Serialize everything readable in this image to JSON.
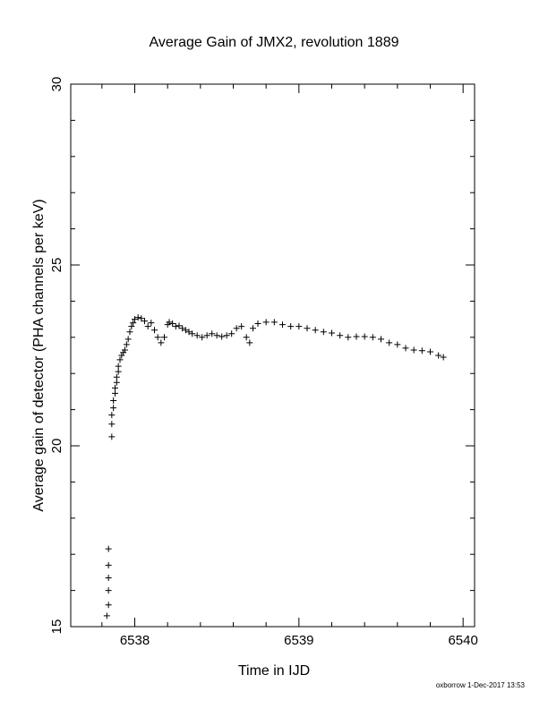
{
  "chart_data": {
    "type": "scatter",
    "title": "Average Gain of JMX2, revolution 1889",
    "xlabel": "Time in IJD",
    "ylabel": "Average gain of detector (PHA channels per keV)",
    "xlim": [
      6537.61,
      6540.07
    ],
    "ylim": [
      15,
      30
    ],
    "xticks": [
      6538,
      6539,
      6540
    ],
    "xtick_labels": [
      "6538",
      "6539",
      "6540"
    ],
    "yticks": [
      15,
      20,
      25,
      30
    ],
    "ytick_labels": [
      "15",
      "20",
      "25",
      "30"
    ],
    "grid": false,
    "marker": "plus",
    "series": [
      {
        "x": [
          6537.83,
          6537.84,
          6537.84,
          6537.84,
          6537.84,
          6537.84,
          6537.86,
          6537.86,
          6537.86,
          6537.87,
          6537.87,
          6537.88,
          6537.88,
          6537.89,
          6537.89,
          6537.9,
          6537.9,
          6537.91,
          6537.92,
          6537.93,
          6537.94,
          6537.95,
          6537.96,
          6537.97,
          6537.98,
          6537.99,
          6538.0,
          6538.02,
          6538.04,
          6538.06,
          6538.08,
          6538.1,
          6538.12,
          6538.14,
          6538.16,
          6538.18,
          6538.2,
          6538.21,
          6538.23,
          6538.25,
          6538.27,
          6538.29,
          6538.31,
          6538.33,
          6538.35,
          6538.38,
          6538.41,
          6538.44,
          6538.47,
          6538.5,
          6538.53,
          6538.56,
          6538.59,
          6538.62,
          6538.65,
          6538.68,
          6538.7,
          6538.72,
          6538.75,
          6538.8,
          6538.85,
          6538.9,
          6538.95,
          6539.0,
          6539.05,
          6539.1,
          6539.15,
          6539.2,
          6539.25,
          6539.3,
          6539.35,
          6539.4,
          6539.45,
          6539.5,
          6539.55,
          6539.6,
          6539.65,
          6539.7,
          6539.75,
          6539.8,
          6539.85,
          6539.88
        ],
        "y": [
          15.3,
          15.6,
          16.0,
          16.35,
          16.7,
          17.15,
          20.25,
          20.6,
          20.85,
          21.05,
          21.25,
          21.45,
          21.6,
          21.75,
          21.9,
          22.05,
          22.2,
          22.38,
          22.5,
          22.58,
          22.65,
          22.8,
          22.95,
          23.15,
          23.3,
          23.4,
          23.5,
          23.55,
          23.52,
          23.45,
          23.3,
          23.4,
          23.2,
          23.0,
          22.85,
          23.0,
          23.35,
          23.42,
          23.38,
          23.3,
          23.32,
          23.25,
          23.2,
          23.15,
          23.1,
          23.05,
          23.0,
          23.05,
          23.1,
          23.05,
          23.02,
          23.05,
          23.1,
          23.25,
          23.3,
          23.0,
          22.85,
          23.25,
          23.38,
          23.42,
          23.42,
          23.35,
          23.3,
          23.3,
          23.25,
          23.2,
          23.15,
          23.12,
          23.05,
          23.0,
          23.02,
          23.02,
          23.0,
          22.95,
          22.85,
          22.8,
          22.7,
          22.65,
          22.63,
          22.6,
          22.5,
          22.45
        ]
      }
    ]
  },
  "footer": "oxborrow 1-Dec-2017 13:53"
}
